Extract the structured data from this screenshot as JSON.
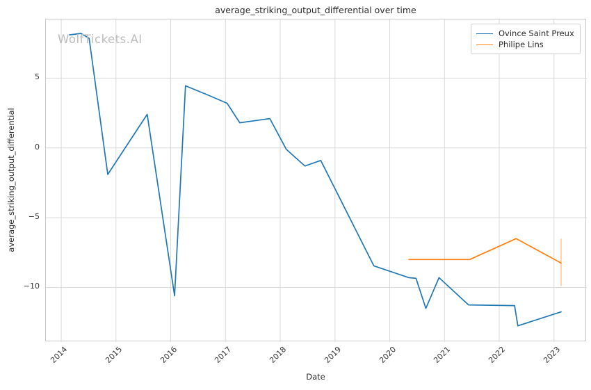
{
  "watermark": "WolfTickets.AI",
  "chart_data": {
    "type": "line",
    "title": "average_striking_output_differential over time",
    "xlabel": "Date",
    "ylabel": "average_striking_output_differential",
    "xlim": [
      2013.72,
      2023.6
    ],
    "ylim": [
      -13.91,
      9.2
    ],
    "x_ticks": {
      "values": [
        2014,
        2015,
        2016,
        2017,
        2018,
        2019,
        2020,
        2021,
        2022,
        2023
      ],
      "labels": [
        "2014",
        "2015",
        "2016",
        "2017",
        "2018",
        "2019",
        "2020",
        "2021",
        "2022",
        "2023"
      ]
    },
    "y_ticks": {
      "values": [
        5,
        0,
        -5,
        -10
      ],
      "labels": [
        "5",
        "0",
        "−5",
        "−10"
      ]
    },
    "grid": true,
    "grid_color": "#d9d9d9",
    "legend_position": "upper right",
    "series": [
      {
        "name": "Ovince Saint Preux",
        "color": "#1f77b4",
        "x": [
          2014.15,
          2014.36,
          2014.51,
          2014.85,
          2015.57,
          2016.07,
          2016.27,
          2016.67,
          2017.03,
          2017.26,
          2017.81,
          2018.11,
          2018.45,
          2018.74,
          2019.71,
          2020.35,
          2020.48,
          2020.66,
          2020.9,
          2021.44,
          2022.28,
          2022.34,
          2023.13
        ],
        "y": [
          8.1,
          8.2,
          7.85,
          -1.9,
          2.4,
          -10.6,
          4.45,
          3.8,
          3.2,
          1.8,
          2.1,
          -0.1,
          -1.3,
          -0.9,
          -8.45,
          -9.3,
          -9.35,
          -11.5,
          -9.3,
          -11.25,
          -11.3,
          -12.75,
          -11.75
        ]
      },
      {
        "name": "Philipe Lins",
        "color": "#ff7f0e",
        "x": [
          2020.35,
          2021.46,
          2022.31,
          2023.13
        ],
        "y": [
          -8.0,
          -8.0,
          -6.5,
          -8.25
        ],
        "error_bar": {
          "x": 2023.13,
          "y_low": -9.9,
          "y_high": -6.5,
          "opacity": 0.4
        }
      }
    ]
  }
}
